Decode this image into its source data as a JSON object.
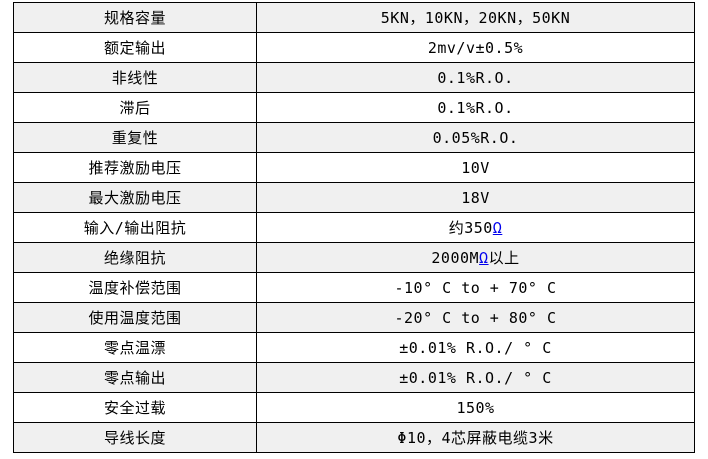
{
  "table": {
    "name": "load-cell-specification-table",
    "columns": [
      "parameter",
      "value"
    ],
    "rows": [
      {
        "label": "规格容量",
        "value": "5KN，10KN，20KN，50KN"
      },
      {
        "label": "额定输出",
        "value": "2mv/v±0.5%"
      },
      {
        "label": "非线性",
        "value": "0.1%R.O."
      },
      {
        "label": "滞后",
        "value": "0.1%R.O."
      },
      {
        "label": "重复性",
        "value": "0.05%R.O."
      },
      {
        "label": "推荐激励电压",
        "value": "10V"
      },
      {
        "label": "最大激励电压",
        "value": "18V"
      },
      {
        "label": "输入/输出阻抗",
        "value_pre": "约350",
        "link_text": "Ω",
        "value_post": ""
      },
      {
        "label": "绝缘阻抗",
        "value_pre": "2000M",
        "link_text": "Ω",
        "value_post": "以上"
      },
      {
        "label": "温度补偿范围",
        "value": "-10° C to + 70° C"
      },
      {
        "label": "使用温度范围",
        "value": "-20° C to + 80° C"
      },
      {
        "label": "零点温漂",
        "value": "±0.01% R.O./ ° C"
      },
      {
        "label": "零点输出",
        "value": "±0.01% R.O./ ° C"
      },
      {
        "label": "安全过载",
        "value": "150%"
      },
      {
        "label": "导线长度",
        "value": "Φ10，4芯屏蔽电缆3米"
      }
    ]
  },
  "colors": {
    "row_shade": "#f0f0f0",
    "row_plain": "#ffffff",
    "border": "#000000",
    "text": "#000000",
    "link_blue": "#0000ee"
  }
}
